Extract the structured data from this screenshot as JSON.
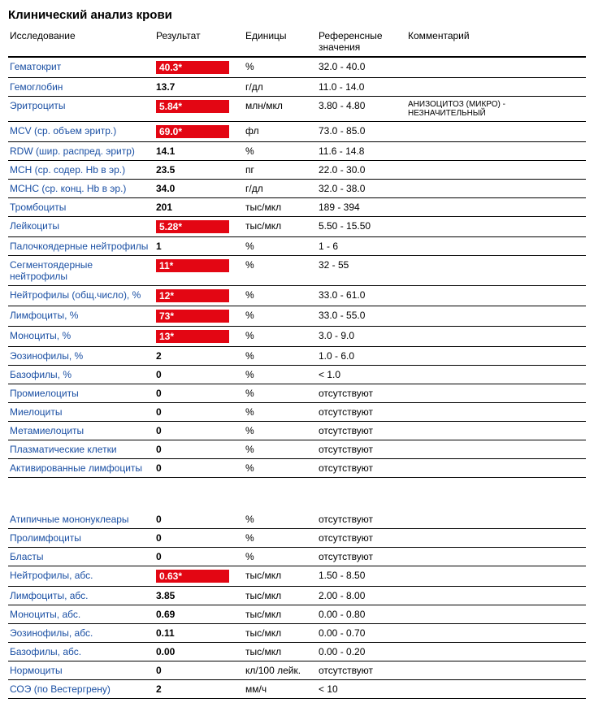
{
  "title": "Клинический анализ крови",
  "columns": {
    "test": "Исследование",
    "result": "Результат",
    "unit": "Единицы",
    "ref": "Референсные значения",
    "comment": "Комментарий"
  },
  "colors": {
    "link": "#1a4fa3",
    "flag_bg": "#e30613",
    "flag_text": "#ffffff",
    "border": "#000000",
    "background": "#ffffff"
  },
  "rows1": [
    {
      "test": "Гематокрит",
      "result": "40.3*",
      "flag": true,
      "unit": "%",
      "ref": "32.0 - 40.0",
      "comment": ""
    },
    {
      "test": "Гемоглобин",
      "result": "13.7",
      "flag": false,
      "unit": "г/дл",
      "ref": "11.0 - 14.0",
      "comment": ""
    },
    {
      "test": "Эритроциты",
      "result": "5.84*",
      "flag": true,
      "unit": "млн/мкл",
      "ref": "3.80 - 4.80",
      "comment": "АНИЗОЦИТОЗ (МИКРО) - НЕЗНАЧИТЕЛЬНЫЙ"
    },
    {
      "test": "MCV (ср. объем эритр.)",
      "result": "69.0*",
      "flag": true,
      "unit": "фл",
      "ref": "73.0 - 85.0",
      "comment": ""
    },
    {
      "test": "RDW (шир. распред. эритр)",
      "result": "14.1",
      "flag": false,
      "unit": "%",
      "ref": "11.6 - 14.8",
      "comment": ""
    },
    {
      "test": "MCH (ср. содер. Hb в эр.)",
      "result": "23.5",
      "flag": false,
      "unit": "пг",
      "ref": "22.0 - 30.0",
      "comment": ""
    },
    {
      "test": "MCHC (ср. конц. Hb в эр.)",
      "result": "34.0",
      "flag": false,
      "unit": "г/дл",
      "ref": "32.0 - 38.0",
      "comment": ""
    },
    {
      "test": "Тромбоциты",
      "result": "201",
      "flag": false,
      "unit": "тыс/мкл",
      "ref": "189 - 394",
      "comment": ""
    },
    {
      "test": "Лейкоциты",
      "result": "5.28*",
      "flag": true,
      "unit": "тыс/мкл",
      "ref": "5.50 - 15.50",
      "comment": ""
    },
    {
      "test": "Палочкоядерные нейтрофилы",
      "result": "1",
      "flag": false,
      "unit": "%",
      "ref": "1 - 6",
      "comment": ""
    },
    {
      "test": "Сегментоядерные нейтрофилы",
      "result": "11*",
      "flag": true,
      "unit": "%",
      "ref": "32 - 55",
      "comment": ""
    },
    {
      "test": "Нейтрофилы (общ.число), %",
      "result": "12*",
      "flag": true,
      "unit": "%",
      "ref": "33.0 - 61.0",
      "comment": ""
    },
    {
      "test": "Лимфоциты, %",
      "result": "73*",
      "flag": true,
      "unit": "%",
      "ref": "33.0 - 55.0",
      "comment": ""
    },
    {
      "test": "Моноциты, %",
      "result": "13*",
      "flag": true,
      "unit": "%",
      "ref": "3.0 - 9.0",
      "comment": ""
    },
    {
      "test": "Эозинофилы, %",
      "result": "2",
      "flag": false,
      "unit": "%",
      "ref": "1.0 - 6.0",
      "comment": ""
    },
    {
      "test": "Базофилы, %",
      "result": "0",
      "flag": false,
      "unit": "%",
      "ref": "< 1.0",
      "comment": ""
    },
    {
      "test": "Промиелоциты",
      "result": "0",
      "flag": false,
      "unit": "%",
      "ref": "отсутствуют",
      "comment": ""
    },
    {
      "test": "Миелоциты",
      "result": "0",
      "flag": false,
      "unit": "%",
      "ref": "отсутствуют",
      "comment": ""
    },
    {
      "test": "Метамиелоциты",
      "result": "0",
      "flag": false,
      "unit": "%",
      "ref": "отсутствуют",
      "comment": ""
    },
    {
      "test": "Плазматические клетки",
      "result": "0",
      "flag": false,
      "unit": "%",
      "ref": "отсутствуют",
      "comment": ""
    },
    {
      "test": "Активированные лимфоциты",
      "result": "0",
      "flag": false,
      "unit": "%",
      "ref": "отсутствуют",
      "comment": ""
    }
  ],
  "rows2": [
    {
      "test": "Атипичные мононуклеары",
      "result": "0",
      "flag": false,
      "unit": "%",
      "ref": "отсутствуют",
      "comment": ""
    },
    {
      "test": "Пролимфоциты",
      "result": "0",
      "flag": false,
      "unit": "%",
      "ref": "отсутствуют",
      "comment": ""
    },
    {
      "test": "Бласты",
      "result": "0",
      "flag": false,
      "unit": "%",
      "ref": "отсутствуют",
      "comment": ""
    },
    {
      "test": "Нейтрофилы, абс.",
      "result": "0.63*",
      "flag": true,
      "unit": "тыс/мкл",
      "ref": "1.50 - 8.50",
      "comment": ""
    },
    {
      "test": "Лимфоциты, абс.",
      "result": "3.85",
      "flag": false,
      "unit": "тыс/мкл",
      "ref": "2.00 - 8.00",
      "comment": ""
    },
    {
      "test": "Моноциты, абс.",
      "result": "0.69",
      "flag": false,
      "unit": "тыс/мкл",
      "ref": "0.00 - 0.80",
      "comment": ""
    },
    {
      "test": "Эозинофилы, абс.",
      "result": "0.11",
      "flag": false,
      "unit": "тыс/мкл",
      "ref": "0.00 - 0.70",
      "comment": ""
    },
    {
      "test": "Базофилы, абс.",
      "result": "0.00",
      "flag": false,
      "unit": "тыс/мкл",
      "ref": "0.00 - 0.20",
      "comment": ""
    },
    {
      "test": "Нормоциты",
      "result": "0",
      "flag": false,
      "unit": "кл/100 лейк.",
      "ref": "отсутствуют",
      "comment": ""
    },
    {
      "test": "СОЭ (по Вестергрену)",
      "result": "2",
      "flag": false,
      "unit": "мм/ч",
      "ref": "< 10",
      "comment": ""
    }
  ]
}
